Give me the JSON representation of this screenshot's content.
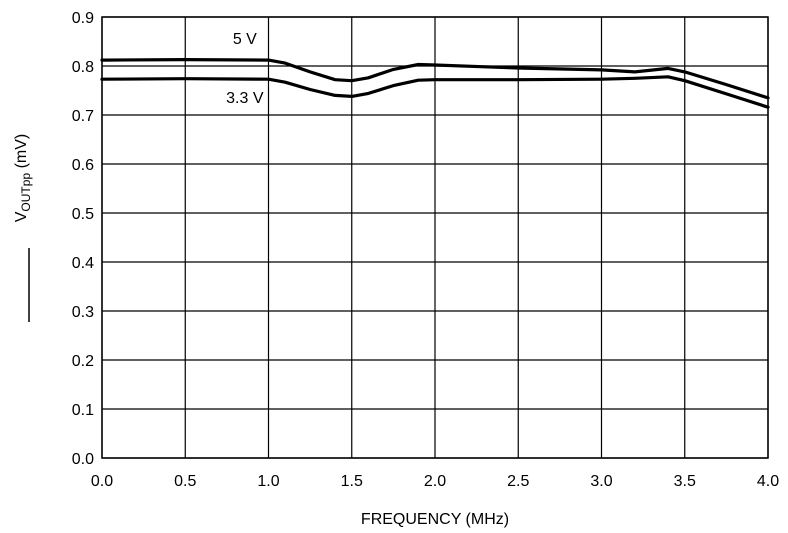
{
  "chart_data": {
    "type": "line",
    "xlabel": "FREQUENCY (MHz)",
    "ylabel": {
      "main": "V",
      "subscript": "OUTpp",
      "suffix": " (mV)"
    },
    "xlim": [
      0.0,
      4.0
    ],
    "ylim": [
      0.0,
      0.9
    ],
    "x_ticks": [
      "0.0",
      "0.5",
      "1.0",
      "1.5",
      "2.0",
      "2.5",
      "3.0",
      "3.5",
      "4.0"
    ],
    "y_ticks": [
      "0.0",
      "0.1",
      "0.2",
      "0.3",
      "0.4",
      "0.5",
      "0.6",
      "0.7",
      "0.8",
      "0.9"
    ],
    "grid": true,
    "series": [
      {
        "name": "5 V",
        "x": [
          0.0,
          0.5,
          1.0,
          1.1,
          1.25,
          1.4,
          1.5,
          1.6,
          1.75,
          1.9,
          2.0,
          2.5,
          3.0,
          3.2,
          3.4,
          3.5,
          3.75,
          4.0
        ],
        "y": [
          0.812,
          0.813,
          0.812,
          0.806,
          0.788,
          0.772,
          0.77,
          0.776,
          0.793,
          0.803,
          0.802,
          0.796,
          0.792,
          0.788,
          0.795,
          0.788,
          0.762,
          0.735
        ]
      },
      {
        "name": "3.3 V",
        "x": [
          0.0,
          0.5,
          1.0,
          1.1,
          1.25,
          1.4,
          1.5,
          1.6,
          1.75,
          1.9,
          2.0,
          2.5,
          3.0,
          3.2,
          3.4,
          3.5,
          3.75,
          4.0
        ],
        "y": [
          0.773,
          0.774,
          0.773,
          0.767,
          0.752,
          0.74,
          0.738,
          0.744,
          0.76,
          0.771,
          0.772,
          0.772,
          0.773,
          0.775,
          0.778,
          0.77,
          0.743,
          0.716
        ]
      }
    ]
  }
}
